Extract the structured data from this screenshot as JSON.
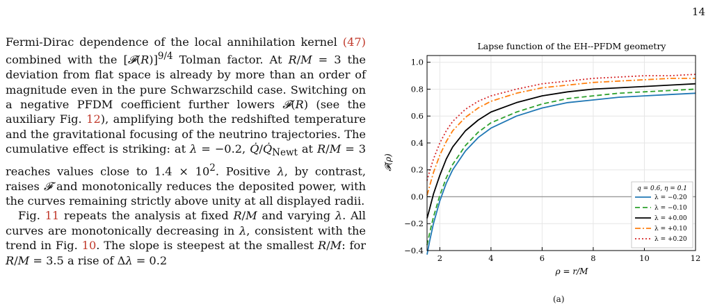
{
  "page": {
    "number": "14"
  },
  "text": {
    "para1": "Fermi-Dirac dependence of the local annihilation kernel (47) combined with the [𝓕(R)]^{9/4} Tolman factor. At R/M = 3 the deviation from flat space is already by more than an order of magnitude even in the pure Schwarzschild case. Switching on a negative PFDM coefficient further lowers 𝓕(R) (see the auxiliary Fig. 12), amplifying both the redshifted temperature and the gravitational focusing of the neutrino trajectories. The cumulative effect is striking: at λ = −0.2, Q̇/Q̇_Newt at R/M = 3 reaches values close to 1.4 × 10². Positive λ, by contrast, raises 𝓕 and monotonically reduces the deposited power, with the curves remaining strictly above unity at all displayed radii.",
    "para2": "Fig. 11 repeats the analysis at fixed R/M and varying λ. All curves are monotonically decreasing in λ, consistent with the trend in Fig. 10. The slope is steepest at the smallest R/M: for R/M = 3.5 a rise of Δλ = 0.2"
  },
  "chart_data": {
    "type": "line",
    "title": "Lapse function of the EH--PFDM geometry",
    "xlabel": "ρ = r/M",
    "ylabel": "𝓕(ρ)",
    "xlim": [
      1.5,
      12
    ],
    "ylim": [
      -0.4,
      1.05
    ],
    "xticks": [
      2,
      4,
      6,
      8,
      10,
      12
    ],
    "yticks": [
      -0.4,
      -0.2,
      0.0,
      0.2,
      0.4,
      0.6,
      0.8,
      1.0
    ],
    "grid": true,
    "legend_position": "lower-right",
    "legend_title": "q = 0.6, η = 0.1",
    "reference_line": {
      "y": 0.0,
      "color": "#999999"
    },
    "x": [
      1.5,
      1.6,
      1.75,
      2.0,
      2.25,
      2.5,
      3.0,
      3.5,
      4.0,
      5.0,
      6.0,
      7.0,
      8.0,
      9.0,
      10.0,
      11.0,
      12.0
    ],
    "series": [
      {
        "name": "λ = −0.20",
        "color": "#1f77b4",
        "dash": "solid",
        "values": [
          -0.43,
          -0.33,
          -0.2,
          -0.03,
          0.1,
          0.2,
          0.34,
          0.44,
          0.51,
          0.6,
          0.66,
          0.7,
          0.72,
          0.74,
          0.75,
          0.76,
          0.77
        ]
      },
      {
        "name": "λ = −0.10",
        "color": "#2ca02c",
        "dash": "dashed",
        "values": [
          -0.36,
          -0.27,
          -0.15,
          0.01,
          0.14,
          0.24,
          0.38,
          0.48,
          0.55,
          0.63,
          0.69,
          0.73,
          0.75,
          0.77,
          0.78,
          0.79,
          0.8
        ]
      },
      {
        "name": "λ = +0.00",
        "color": "#000000",
        "dash": "solid",
        "values": [
          -0.16,
          -0.09,
          0.02,
          0.16,
          0.28,
          0.37,
          0.49,
          0.57,
          0.63,
          0.7,
          0.75,
          0.78,
          0.8,
          0.81,
          0.82,
          0.83,
          0.84
        ]
      },
      {
        "name": "λ = +0.10",
        "color": "#ff7f0e",
        "dash": "dashdot",
        "values": [
          0.01,
          0.08,
          0.18,
          0.31,
          0.41,
          0.49,
          0.59,
          0.66,
          0.71,
          0.77,
          0.81,
          0.83,
          0.85,
          0.86,
          0.87,
          0.88,
          0.88
        ]
      },
      {
        "name": "λ = +0.20",
        "color": "#d62728",
        "dash": "dotted",
        "values": [
          0.12,
          0.19,
          0.28,
          0.4,
          0.49,
          0.56,
          0.65,
          0.71,
          0.75,
          0.8,
          0.84,
          0.86,
          0.88,
          0.89,
          0.9,
          0.9,
          0.91
        ]
      }
    ]
  }
}
